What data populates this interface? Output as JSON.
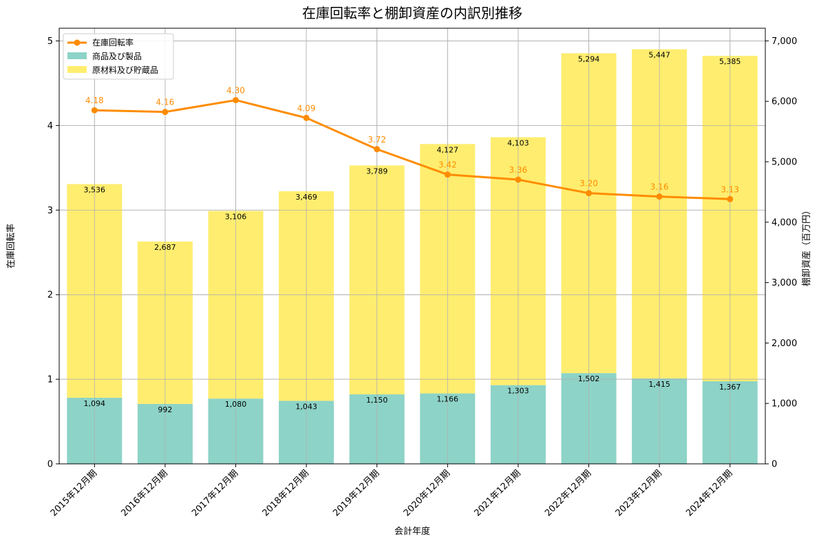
{
  "chart_data": {
    "type": "bar+line",
    "title": "在庫回転率と棚卸資産の内訳別推移",
    "xlabel": "会計年度",
    "ylabel_left": "在庫回転率",
    "ylabel_right": "棚卸資産（百万円）",
    "categories": [
      "2015年12月期",
      "2016年12月期",
      "2017年12月期",
      "2018年12月期",
      "2019年12月期",
      "2020年12月期",
      "2021年12月期",
      "2022年12月期",
      "2023年12月期",
      "2024年12月期"
    ],
    "left_ylim": [
      0,
      5.15
    ],
    "left_ticks": [
      0,
      1,
      2,
      3,
      4,
      5
    ],
    "right_ylim": [
      0,
      7210
    ],
    "right_ticks": [
      0,
      1000,
      2000,
      3000,
      4000,
      5000,
      6000,
      7000
    ],
    "right_tick_labels": [
      "0",
      "1,000",
      "2,000",
      "3,000",
      "4,000",
      "5,000",
      "6,000",
      "7,000"
    ],
    "series": [
      {
        "name": "商品及び製品",
        "kind": "stacked-bar",
        "axis": "right",
        "color": "#8dd3c7",
        "values": [
          1094,
          992,
          1080,
          1043,
          1150,
          1166,
          1303,
          1502,
          1415,
          1367
        ],
        "labels": [
          "1,094",
          "992",
          "1,080",
          "1,043",
          "1,150",
          "1,166",
          "1,303",
          "1,502",
          "1,415",
          "1,367"
        ]
      },
      {
        "name": "原材料及び貯蔵品",
        "kind": "stacked-bar",
        "axis": "right",
        "color": "#ffed6f",
        "values": [
          3536,
          2687,
          3106,
          3469,
          3789,
          4127,
          4103,
          5294,
          5447,
          5385
        ],
        "labels": [
          "3,536",
          "2,687",
          "3,106",
          "3,469",
          "3,789",
          "4,127",
          "4,103",
          "5,294",
          "5,447",
          "5,385"
        ]
      },
      {
        "name": "在庫回転率",
        "kind": "line",
        "axis": "left",
        "color": "#ff8c00",
        "values": [
          4.18,
          4.16,
          4.3,
          4.09,
          3.72,
          3.42,
          3.36,
          3.2,
          3.16,
          3.13
        ],
        "labels": [
          "4.18",
          "4.16",
          "4.30",
          "4.09",
          "3.72",
          "3.42",
          "3.36",
          "3.20",
          "3.16",
          "3.13"
        ]
      }
    ],
    "legend": {
      "placement": "top-left",
      "items": [
        "在庫回転率",
        "商品及び製品",
        "原材料及び貯蔵品"
      ]
    },
    "grid": true
  }
}
